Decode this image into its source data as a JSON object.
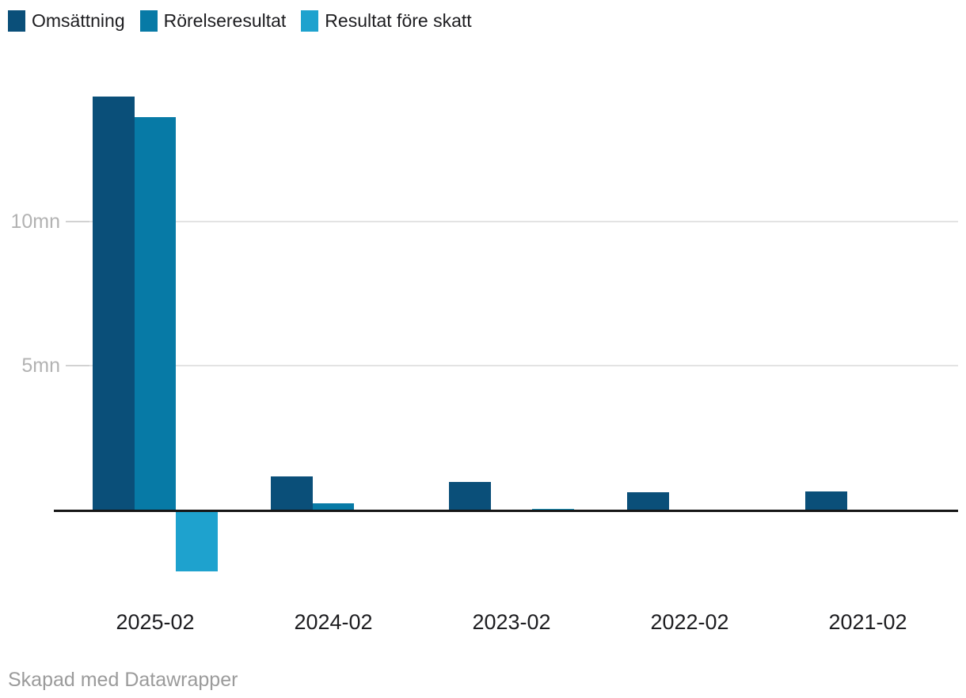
{
  "legend": {
    "position": "top-left"
  },
  "footer": {
    "text": "Skapad med Datawrapper"
  },
  "colors": {
    "background": "#ffffff",
    "axis_line": "#161616",
    "gridline": "#e3e3e3",
    "tick_label": "#b2b2b2",
    "category_label": "#1d1d20",
    "footer_text": "#9b9b9b"
  },
  "chart_data": {
    "type": "bar",
    "subtype": "grouped-column",
    "title": "",
    "xlabel": "",
    "ylabel": "",
    "unit": "mn",
    "grid": true,
    "legend_position": "top-left",
    "categories": [
      "2025-02",
      "2024-02",
      "2023-02",
      "2022-02",
      "2021-02"
    ],
    "series": [
      {
        "name": "Omsättning",
        "color": "#0A4F79",
        "values": [
          14.3,
          1.18,
          0.99,
          0.63,
          0.65
        ]
      },
      {
        "name": "Rörelseresultat",
        "color": "#077AA6",
        "values": [
          13.6,
          0.25,
          0,
          0,
          0
        ]
      },
      {
        "name": "Resultat före skatt",
        "color": "#1EA2CE",
        "values": [
          -2.12,
          0,
          0.06,
          0,
          0
        ]
      }
    ],
    "yticks": [
      {
        "value": 5,
        "label": "5mn"
      },
      {
        "value": 10,
        "label": "10mn"
      }
    ],
    "ylim": [
      -2.5,
      15
    ],
    "baseline": 0
  }
}
